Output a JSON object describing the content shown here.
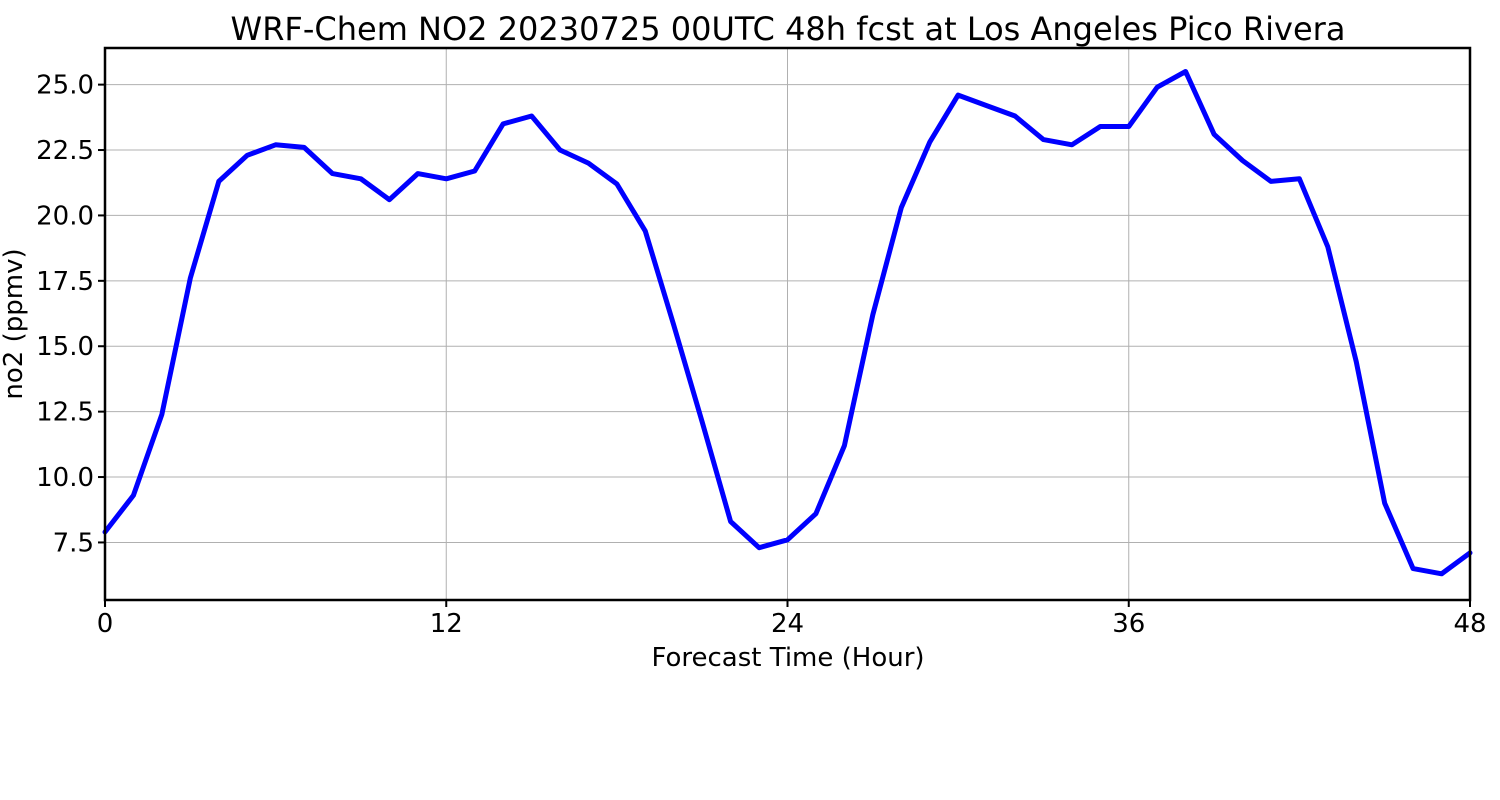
{
  "chart_data": {
    "type": "line",
    "title": "WRF-Chem NO2  20230725 00UTC 48h fcst at Los Angeles Pico Rivera",
    "xlabel": "Forecast Time (Hour)",
    "ylabel": "no2  (ppmv)",
    "xlim": [
      0,
      48
    ],
    "ylim": [
      5.3,
      26.4
    ],
    "xticks": [
      0,
      12,
      24,
      36,
      48
    ],
    "xtick_labels": [
      "0",
      "12",
      "24",
      "36",
      "48"
    ],
    "yticks": [
      7.5,
      10.0,
      12.5,
      15.0,
      17.5,
      20.0,
      22.5,
      25.0
    ],
    "ytick_labels": [
      "7.5",
      "10.0",
      "12.5",
      "15.0",
      "17.5",
      "20.0",
      "22.5",
      "25.0"
    ],
    "grid": true,
    "legend": "none",
    "x": [
      0,
      1,
      2,
      3,
      4,
      5,
      6,
      7,
      8,
      9,
      10,
      11,
      12,
      13,
      14,
      15,
      16,
      17,
      18,
      19,
      20,
      21,
      22,
      23,
      24,
      25,
      26,
      27,
      28,
      29,
      30,
      31,
      32,
      33,
      34,
      35,
      36,
      37,
      38,
      39,
      40,
      41,
      42,
      43,
      44,
      45,
      46,
      47,
      48
    ],
    "series": [
      {
        "color": "#0000ff",
        "values": [
          7.9,
          9.3,
          12.4,
          17.6,
          21.3,
          22.3,
          22.7,
          22.6,
          21.6,
          21.4,
          20.6,
          21.6,
          21.4,
          21.7,
          23.5,
          23.8,
          22.5,
          22.0,
          21.2,
          19.4,
          15.8,
          12.1,
          8.3,
          7.3,
          7.6,
          8.6,
          11.2,
          16.2,
          20.3,
          22.8,
          24.6,
          24.2,
          23.8,
          22.9,
          22.7,
          23.4,
          23.4,
          24.9,
          25.5,
          23.1,
          22.1,
          21.3,
          21.4,
          18.8,
          14.4,
          9.0,
          6.5,
          6.3,
          7.1
        ]
      }
    ]
  }
}
